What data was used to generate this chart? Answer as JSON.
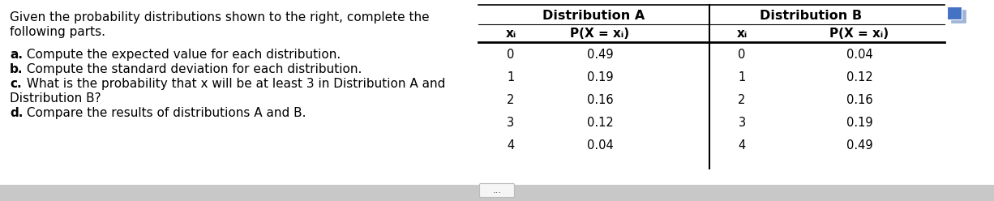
{
  "line1": "Given the probability distributions shown to the right, complete the",
  "line2": "following parts.",
  "line_a_bold": "a.",
  "line_a_text": " Compute the expected value for each distribution.",
  "line_b_bold": "b.",
  "line_b_text": " Compute the standard deviation for each distribution.",
  "line_c_bold": "c.",
  "line_c_text": " What is the probability that x will be at least 3 in Distribution A and",
  "line_c2": "Distribution B?",
  "line_d_bold": "d.",
  "line_d_text": " Compare the results of distributions A and B.",
  "dist_a_header": "Distribution A",
  "dist_b_header": "Distribution B",
  "col_xi": "xᵢ",
  "col_px": "P(X = xᵢ)",
  "dist_a_x": [
    0,
    1,
    2,
    3,
    4
  ],
  "dist_a_p": [
    "0.49",
    "0.19",
    "0.16",
    "0.12",
    "0.04"
  ],
  "dist_b_x": [
    0,
    1,
    2,
    3,
    4
  ],
  "dist_b_p": [
    "0.04",
    "0.12",
    "0.16",
    "0.19",
    "0.49"
  ],
  "bg_color": "#ffffff",
  "text_color": "#000000",
  "gray_bar_color": "#c8c8c8",
  "table_line_color": "#000000",
  "font_size_intro": 11.0,
  "font_size_items": 11.0,
  "font_size_header": 11.5,
  "font_size_col_header": 11.0,
  "font_size_data": 10.5,
  "icon_color_front": "#4472c4",
  "icon_color_back": "#a0b4d8"
}
